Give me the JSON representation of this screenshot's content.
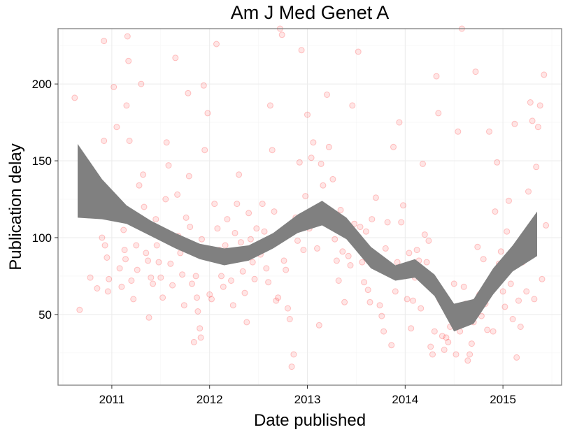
{
  "chart_data": {
    "type": "scatter",
    "title": "Am J Med Genet A",
    "xlabel": "Date published",
    "ylabel": "Publication delay",
    "xlim": [
      2010.45,
      2015.6
    ],
    "ylim": [
      4,
      236
    ],
    "x_ticks": [
      2011,
      2012,
      2013,
      2014,
      2015
    ],
    "y_ticks": [
      50,
      100,
      150,
      200
    ],
    "grid": true,
    "point_color": "#ff0000",
    "point_alpha": 0.12,
    "band_color": "#808080",
    "smooth_band": [
      {
        "x": 2010.65,
        "lo": 113,
        "hi": 161
      },
      {
        "x": 2010.9,
        "lo": 112,
        "hi": 138
      },
      {
        "x": 2011.15,
        "lo": 109,
        "hi": 121
      },
      {
        "x": 2011.4,
        "lo": 101,
        "hi": 111
      },
      {
        "x": 2011.65,
        "lo": 93,
        "hi": 103
      },
      {
        "x": 2011.9,
        "lo": 86,
        "hi": 96
      },
      {
        "x": 2012.15,
        "lo": 82,
        "hi": 93
      },
      {
        "x": 2012.4,
        "lo": 85,
        "hi": 95
      },
      {
        "x": 2012.65,
        "lo": 93,
        "hi": 103
      },
      {
        "x": 2012.9,
        "lo": 103,
        "hi": 115
      },
      {
        "x": 2013.15,
        "lo": 108,
        "hi": 124
      },
      {
        "x": 2013.4,
        "lo": 99,
        "hi": 113
      },
      {
        "x": 2013.65,
        "lo": 80,
        "hi": 94
      },
      {
        "x": 2013.9,
        "lo": 72,
        "hi": 82
      },
      {
        "x": 2014.1,
        "lo": 74,
        "hi": 86
      },
      {
        "x": 2014.3,
        "lo": 62,
        "hi": 76
      },
      {
        "x": 2014.5,
        "lo": 39,
        "hi": 57
      },
      {
        "x": 2014.7,
        "lo": 44,
        "hi": 60
      },
      {
        "x": 2014.9,
        "lo": 63,
        "hi": 80
      },
      {
        "x": 2015.1,
        "lo": 78,
        "hi": 95
      },
      {
        "x": 2015.35,
        "lo": 88,
        "hi": 117
      }
    ],
    "points": [
      [
        2010.62,
        191
      ],
      [
        2010.67,
        53
      ],
      [
        2010.78,
        74
      ],
      [
        2010.85,
        67
      ],
      [
        2010.9,
        100
      ],
      [
        2010.92,
        228
      ],
      [
        2010.92,
        163
      ],
      [
        2010.93,
        95
      ],
      [
        2010.95,
        87
      ],
      [
        2010.96,
        65
      ],
      [
        2010.97,
        73
      ],
      [
        2011.0,
        122
      ],
      [
        2011.02,
        198
      ],
      [
        2011.05,
        172
      ],
      [
        2011.08,
        80
      ],
      [
        2011.1,
        68
      ],
      [
        2011.12,
        105
      ],
      [
        2011.13,
        92
      ],
      [
        2011.14,
        86
      ],
      [
        2011.15,
        186
      ],
      [
        2011.16,
        231
      ],
      [
        2011.17,
        215
      ],
      [
        2011.18,
        163
      ],
      [
        2011.2,
        72
      ],
      [
        2011.22,
        60
      ],
      [
        2011.25,
        95
      ],
      [
        2011.26,
        79
      ],
      [
        2011.28,
        134
      ],
      [
        2011.3,
        200
      ],
      [
        2011.32,
        141
      ],
      [
        2011.33,
        120
      ],
      [
        2011.35,
        90
      ],
      [
        2011.37,
        85
      ],
      [
        2011.38,
        48
      ],
      [
        2011.4,
        74
      ],
      [
        2011.42,
        70
      ],
      [
        2011.45,
        112
      ],
      [
        2011.46,
        95
      ],
      [
        2011.48,
        84
      ],
      [
        2011.5,
        74
      ],
      [
        2011.52,
        61
      ],
      [
        2011.53,
        104
      ],
      [
        2011.55,
        125
      ],
      [
        2011.56,
        162
      ],
      [
        2011.58,
        147
      ],
      [
        2011.6,
        83
      ],
      [
        2011.62,
        69
      ],
      [
        2011.65,
        217
      ],
      [
        2011.67,
        128
      ],
      [
        2011.68,
        101
      ],
      [
        2011.7,
        90
      ],
      [
        2011.72,
        76
      ],
      [
        2011.74,
        56
      ],
      [
        2011.76,
        113
      ],
      [
        2011.78,
        194
      ],
      [
        2011.79,
        140
      ],
      [
        2011.8,
        107
      ],
      [
        2011.82,
        70
      ],
      [
        2011.84,
        32
      ],
      [
        2011.86,
        75
      ],
      [
        2011.87,
        61
      ],
      [
        2011.88,
        52
      ],
      [
        2011.9,
        41
      ],
      [
        2011.91,
        35
      ],
      [
        2011.92,
        99
      ],
      [
        2011.94,
        199
      ],
      [
        2011.95,
        157
      ],
      [
        2011.98,
        181
      ],
      [
        2012.0,
        63
      ],
      [
        2012.02,
        60
      ],
      [
        2012.05,
        122
      ],
      [
        2012.07,
        226
      ],
      [
        2012.08,
        106
      ],
      [
        2012.1,
        92
      ],
      [
        2012.12,
        75
      ],
      [
        2012.14,
        68
      ],
      [
        2012.16,
        95
      ],
      [
        2012.18,
        112
      ],
      [
        2012.2,
        87
      ],
      [
        2012.22,
        72
      ],
      [
        2012.24,
        56
      ],
      [
        2012.26,
        103
      ],
      [
        2012.28,
        122
      ],
      [
        2012.3,
        141
      ],
      [
        2012.32,
        97
      ],
      [
        2012.34,
        78
      ],
      [
        2012.36,
        64
      ],
      [
        2012.38,
        45
      ],
      [
        2012.4,
        116
      ],
      [
        2012.42,
        99
      ],
      [
        2012.44,
        84
      ],
      [
        2012.46,
        73
      ],
      [
        2012.48,
        106
      ],
      [
        2012.5,
        96
      ],
      [
        2012.52,
        89
      ],
      [
        2012.54,
        122
      ],
      [
        2012.56,
        104
      ],
      [
        2012.58,
        80
      ],
      [
        2012.6,
        71
      ],
      [
        2012.62,
        186
      ],
      [
        2012.64,
        157
      ],
      [
        2012.66,
        117
      ],
      [
        2012.68,
        59
      ],
      [
        2012.7,
        61
      ],
      [
        2012.72,
        236
      ],
      [
        2012.74,
        232
      ],
      [
        2012.76,
        85
      ],
      [
        2012.78,
        79
      ],
      [
        2012.8,
        54
      ],
      [
        2012.82,
        47
      ],
      [
        2012.84,
        16
      ],
      [
        2012.86,
        24
      ],
      [
        2012.88,
        113
      ],
      [
        2012.9,
        98
      ],
      [
        2012.92,
        149
      ],
      [
        2012.94,
        222
      ],
      [
        2012.96,
        92
      ],
      [
        2012.98,
        127
      ],
      [
        2013.0,
        180
      ],
      [
        2013.02,
        106
      ],
      [
        2013.04,
        152
      ],
      [
        2013.06,
        162
      ],
      [
        2013.08,
        116
      ],
      [
        2013.1,
        93
      ],
      [
        2013.12,
        43
      ],
      [
        2013.14,
        148
      ],
      [
        2013.16,
        134
      ],
      [
        2013.18,
        117
      ],
      [
        2013.2,
        193
      ],
      [
        2013.22,
        159
      ],
      [
        2013.24,
        108
      ],
      [
        2013.26,
        138
      ],
      [
        2013.28,
        99
      ],
      [
        2013.3,
        85
      ],
      [
        2013.32,
        72
      ],
      [
        2013.34,
        118
      ],
      [
        2013.36,
        91
      ],
      [
        2013.38,
        58
      ],
      [
        2013.4,
        106
      ],
      [
        2013.42,
        88
      ],
      [
        2013.44,
        82
      ],
      [
        2013.46,
        186
      ],
      [
        2013.48,
        109
      ],
      [
        2013.5,
        95
      ],
      [
        2013.52,
        221
      ],
      [
        2013.54,
        107
      ],
      [
        2013.56,
        84
      ],
      [
        2013.58,
        71
      ],
      [
        2013.6,
        104
      ],
      [
        2013.62,
        66
      ],
      [
        2013.64,
        58
      ],
      [
        2013.66,
        112
      ],
      [
        2013.68,
        87
      ],
      [
        2013.7,
        126
      ],
      [
        2013.72,
        84
      ],
      [
        2013.74,
        56
      ],
      [
        2013.76,
        49
      ],
      [
        2013.78,
        39
      ],
      [
        2013.8,
        93
      ],
      [
        2013.82,
        110
      ],
      [
        2013.84,
        78
      ],
      [
        2013.86,
        30
      ],
      [
        2013.88,
        159
      ],
      [
        2013.9,
        65
      ],
      [
        2013.92,
        84
      ],
      [
        2013.94,
        175
      ],
      [
        2013.96,
        110
      ],
      [
        2013.98,
        121
      ],
      [
        2014.0,
        75
      ],
      [
        2014.02,
        60
      ],
      [
        2014.04,
        90
      ],
      [
        2014.06,
        41
      ],
      [
        2014.08,
        59
      ],
      [
        2014.1,
        74
      ],
      [
        2014.12,
        92
      ],
      [
        2014.14,
        85
      ],
      [
        2014.16,
        54
      ],
      [
        2014.18,
        148
      ],
      [
        2014.2,
        102
      ],
      [
        2014.22,
        84
      ],
      [
        2014.24,
        98
      ],
      [
        2014.26,
        29
      ],
      [
        2014.28,
        24
      ],
      [
        2014.3,
        39
      ],
      [
        2014.32,
        205
      ],
      [
        2014.34,
        181
      ],
      [
        2014.36,
        59
      ],
      [
        2014.38,
        36
      ],
      [
        2014.4,
        27
      ],
      [
        2014.42,
        35
      ],
      [
        2014.44,
        32
      ],
      [
        2014.46,
        42
      ],
      [
        2014.48,
        52
      ],
      [
        2014.5,
        70
      ],
      [
        2014.52,
        24
      ],
      [
        2014.54,
        169
      ],
      [
        2014.56,
        39
      ],
      [
        2014.58,
        236
      ],
      [
        2014.6,
        68
      ],
      [
        2014.62,
        57
      ],
      [
        2014.64,
        20
      ],
      [
        2014.66,
        24
      ],
      [
        2014.68,
        31
      ],
      [
        2014.7,
        45
      ],
      [
        2014.72,
        208
      ],
      [
        2014.74,
        94
      ],
      [
        2014.76,
        63
      ],
      [
        2014.78,
        49
      ],
      [
        2014.8,
        86
      ],
      [
        2014.82,
        57
      ],
      [
        2014.84,
        40
      ],
      [
        2014.86,
        169
      ],
      [
        2014.88,
        74
      ],
      [
        2014.9,
        39
      ],
      [
        2014.92,
        117
      ],
      [
        2014.94,
        149
      ],
      [
        2014.96,
        83
      ],
      [
        2014.98,
        91
      ],
      [
        2015.0,
        65
      ],
      [
        2015.02,
        55
      ],
      [
        2015.04,
        104
      ],
      [
        2015.06,
        124
      ],
      [
        2015.08,
        70
      ],
      [
        2015.1,
        47
      ],
      [
        2015.12,
        174
      ],
      [
        2015.14,
        22
      ],
      [
        2015.16,
        59
      ],
      [
        2015.18,
        42
      ],
      [
        2015.2,
        84
      ],
      [
        2015.22,
        100
      ],
      [
        2015.24,
        65
      ],
      [
        2015.26,
        130
      ],
      [
        2015.28,
        188
      ],
      [
        2015.3,
        176
      ],
      [
        2015.32,
        60
      ],
      [
        2015.34,
        146
      ],
      [
        2015.36,
        172
      ],
      [
        2015.38,
        186
      ],
      [
        2015.4,
        73
      ],
      [
        2015.42,
        206
      ],
      [
        2015.44,
        108
      ]
    ]
  }
}
